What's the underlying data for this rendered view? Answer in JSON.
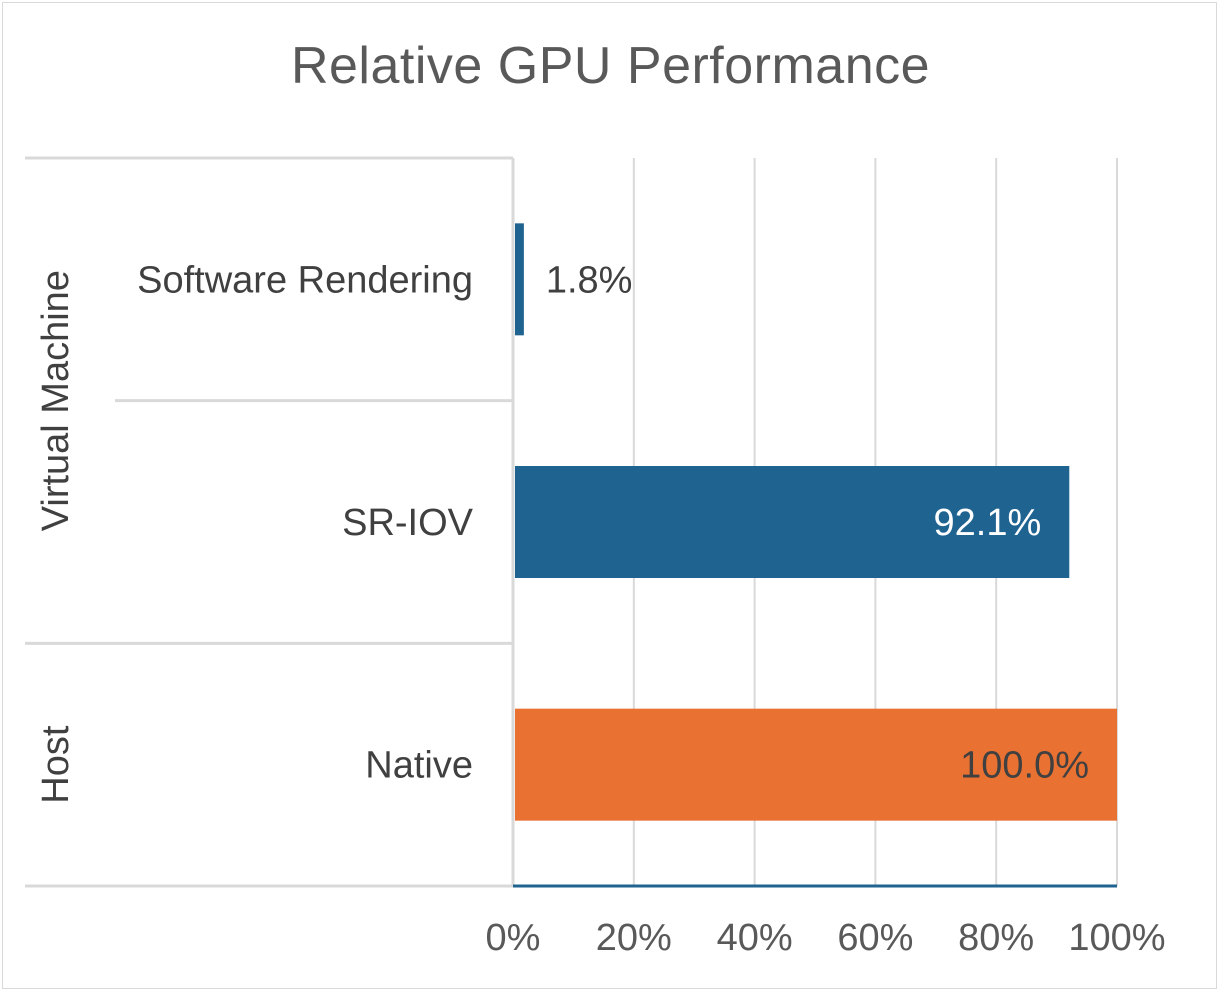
{
  "chart_data": {
    "type": "bar",
    "orientation": "horizontal",
    "title": "Relative GPU Performance",
    "categories": [
      {
        "group": "Virtual Machine",
        "label": "Software Rendering",
        "value": 1.8,
        "value_label": "1.8%",
        "color": "#1f6391"
      },
      {
        "group": "Virtual Machine",
        "label": "SR-IOV",
        "value": 92.1,
        "value_label": "92.1%",
        "color": "#1f6391"
      },
      {
        "group": "Host",
        "label": "Native",
        "value": 100.0,
        "value_label": "100.0%",
        "color": "#e97132"
      }
    ],
    "groups": [
      "Virtual Machine",
      "Host"
    ],
    "xlim": [
      0,
      100
    ],
    "xticks": [
      "0%",
      "20%",
      "40%",
      "60%",
      "80%",
      "100%"
    ],
    "xtick_values": [
      0,
      20,
      40,
      60,
      80,
      100
    ],
    "grid": true,
    "legend": "none",
    "colors": {
      "vm_bar": "#1f6391",
      "host_bar": "#e97132",
      "grid": "#d9d9d9",
      "axis": "#1f6391"
    }
  }
}
